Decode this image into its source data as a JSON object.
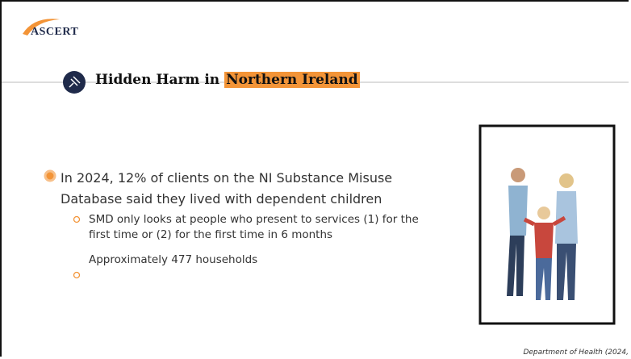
{
  "header": {
    "logo": "ASCERT",
    "title": "Hidden Harm in ",
    "title_highlight": "Northern Ireland"
  },
  "bullets": [
    {
      "text": "In 2024, 12% of clients on the NI Substance Misuse Database said they lived with dependent children",
      "sub": [
        "SMD only looks at people who present to services (1) for the first time or (2) for the first time in 6 months",
        "Approximately 477 households"
      ]
    }
  ],
  "citation": "Department of Health (2024,"
}
